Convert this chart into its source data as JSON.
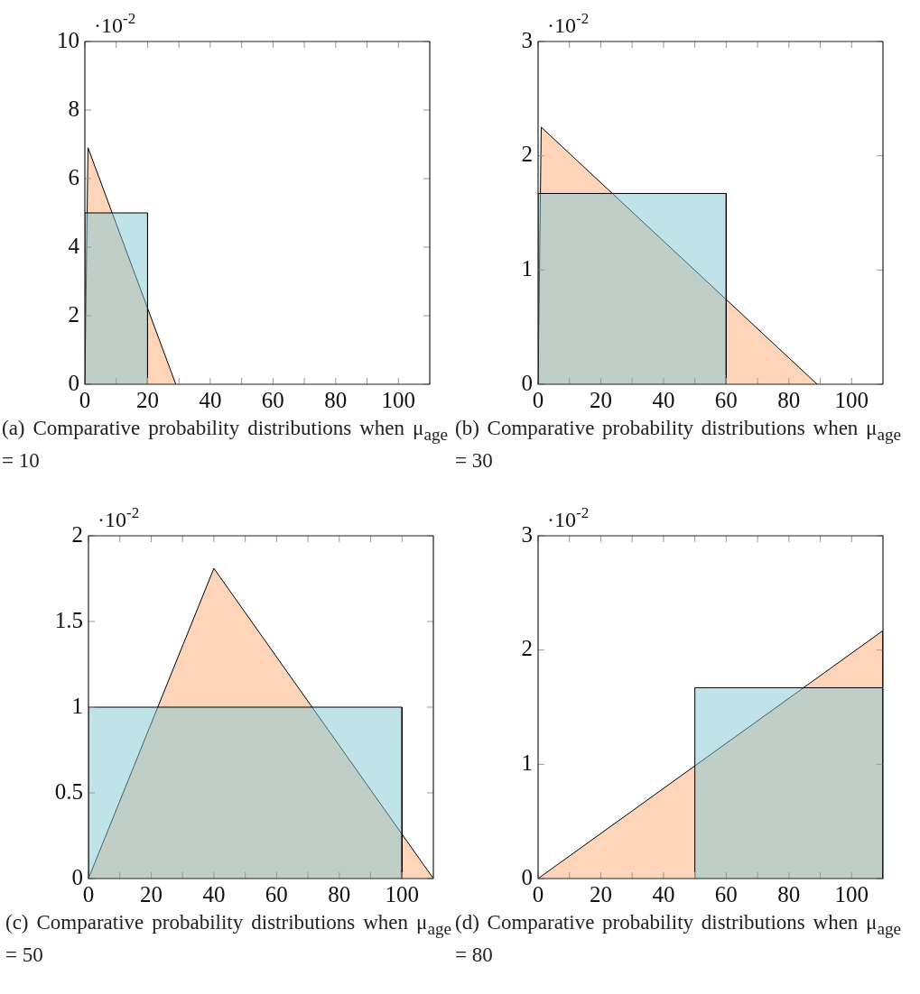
{
  "chart_data": [
    {
      "type": "area",
      "title": "(a) Comparative probability distributions when μ$_{age}$ = 10",
      "annotations": [
        "·10$^{-2}$"
      ],
      "xlim": [
        0,
        110
      ],
      "xticks": [
        0,
        {
          "value": 10,
          "label": null
        },
        20,
        {
          "value": 30,
          "label": null
        },
        40,
        {
          "value": 50,
          "label": null
        },
        60,
        {
          "value": 70,
          "label": null
        },
        80,
        {
          "value": 90,
          "label": null
        },
        100
      ],
      "ylim": [
        0,
        10
      ],
      "yticks": [
        0,
        2,
        4,
        6,
        8,
        10
      ],
      "series": [
        {
          "color": "#ffd5b9",
          "x": [
            0,
            1,
            29
          ],
          "values": [
            0,
            6.9,
            0
          ]
        },
        {
          "color": "#bfe3e9",
          "x": [
            0,
            0,
            20,
            20
          ],
          "values": [
            0,
            5,
            5,
            0
          ]
        }
      ]
    },
    {
      "type": "area",
      "title": "(b) Comparative probability distributions when μ$_{age}$ = 30",
      "annotations": [
        "·10$^{-2}$"
      ],
      "xlim": [
        0,
        110
      ],
      "xticks": [
        0,
        {
          "value": 10,
          "label": null
        },
        20,
        {
          "value": 30,
          "label": null
        },
        40,
        {
          "value": 50,
          "label": null
        },
        60,
        {
          "value": 70,
          "label": null
        },
        80,
        {
          "value": 90,
          "label": null
        },
        100
      ],
      "ylim": [
        0,
        3
      ],
      "yticks": [
        0,
        1,
        2,
        3
      ],
      "series": [
        {
          "color": "#ffd5b9",
          "x": [
            0,
            1,
            89
          ],
          "values": [
            0,
            2.25,
            0
          ]
        },
        {
          "color": "#bfe3e9",
          "x": [
            0,
            0,
            60,
            60
          ],
          "values": [
            0,
            1.67,
            1.67,
            0
          ]
        }
      ]
    },
    {
      "type": "area",
      "title": "(c) Comparative probability distributions when μ$_{age}$ = 50",
      "annotations": [
        "·10$^{-2}$"
      ],
      "xlim": [
        0,
        110
      ],
      "xticks": [
        0,
        {
          "value": 10,
          "label": null
        },
        20,
        {
          "value": 30,
          "label": null
        },
        40,
        {
          "value": 50,
          "label": null
        },
        60,
        {
          "value": 70,
          "label": null
        },
        80,
        {
          "value": 90,
          "label": null
        },
        100
      ],
      "ylim": [
        0,
        2
      ],
      "yticks": [
        0,
        0.5,
        1,
        1.5,
        2
      ],
      "series": [
        {
          "color": "#ffd5b9",
          "x": [
            0,
            40,
            110
          ],
          "values": [
            0,
            1.81,
            0
          ]
        },
        {
          "color": "#bfe3e9",
          "x": [
            0,
            0,
            100,
            100
          ],
          "values": [
            0,
            1,
            1,
            0
          ]
        }
      ]
    },
    {
      "type": "area",
      "title": "(d) Comparative probability distributions when μ$_{age}$ = 80",
      "annotations": [
        "·10$^{-2}$"
      ],
      "xlim": [
        0,
        110
      ],
      "xticks": [
        0,
        {
          "value": 10,
          "label": null
        },
        20,
        {
          "value": 30,
          "label": null
        },
        40,
        {
          "value": 50,
          "label": null
        },
        60,
        {
          "value": 70,
          "label": null
        },
        80,
        {
          "value": 90,
          "label": null
        },
        100
      ],
      "ylim": [
        0,
        3
      ],
      "yticks": [
        0,
        1,
        2,
        3
      ],
      "series": [
        {
          "color": "#ffd5b9",
          "x": [
            0,
            110,
            110
          ],
          "values": [
            0,
            2.17,
            0
          ]
        },
        {
          "color": "#bfe3e9",
          "x": [
            50,
            50,
            110,
            110
          ],
          "values": [
            0,
            1.67,
            1.67,
            0
          ]
        }
      ]
    }
  ]
}
